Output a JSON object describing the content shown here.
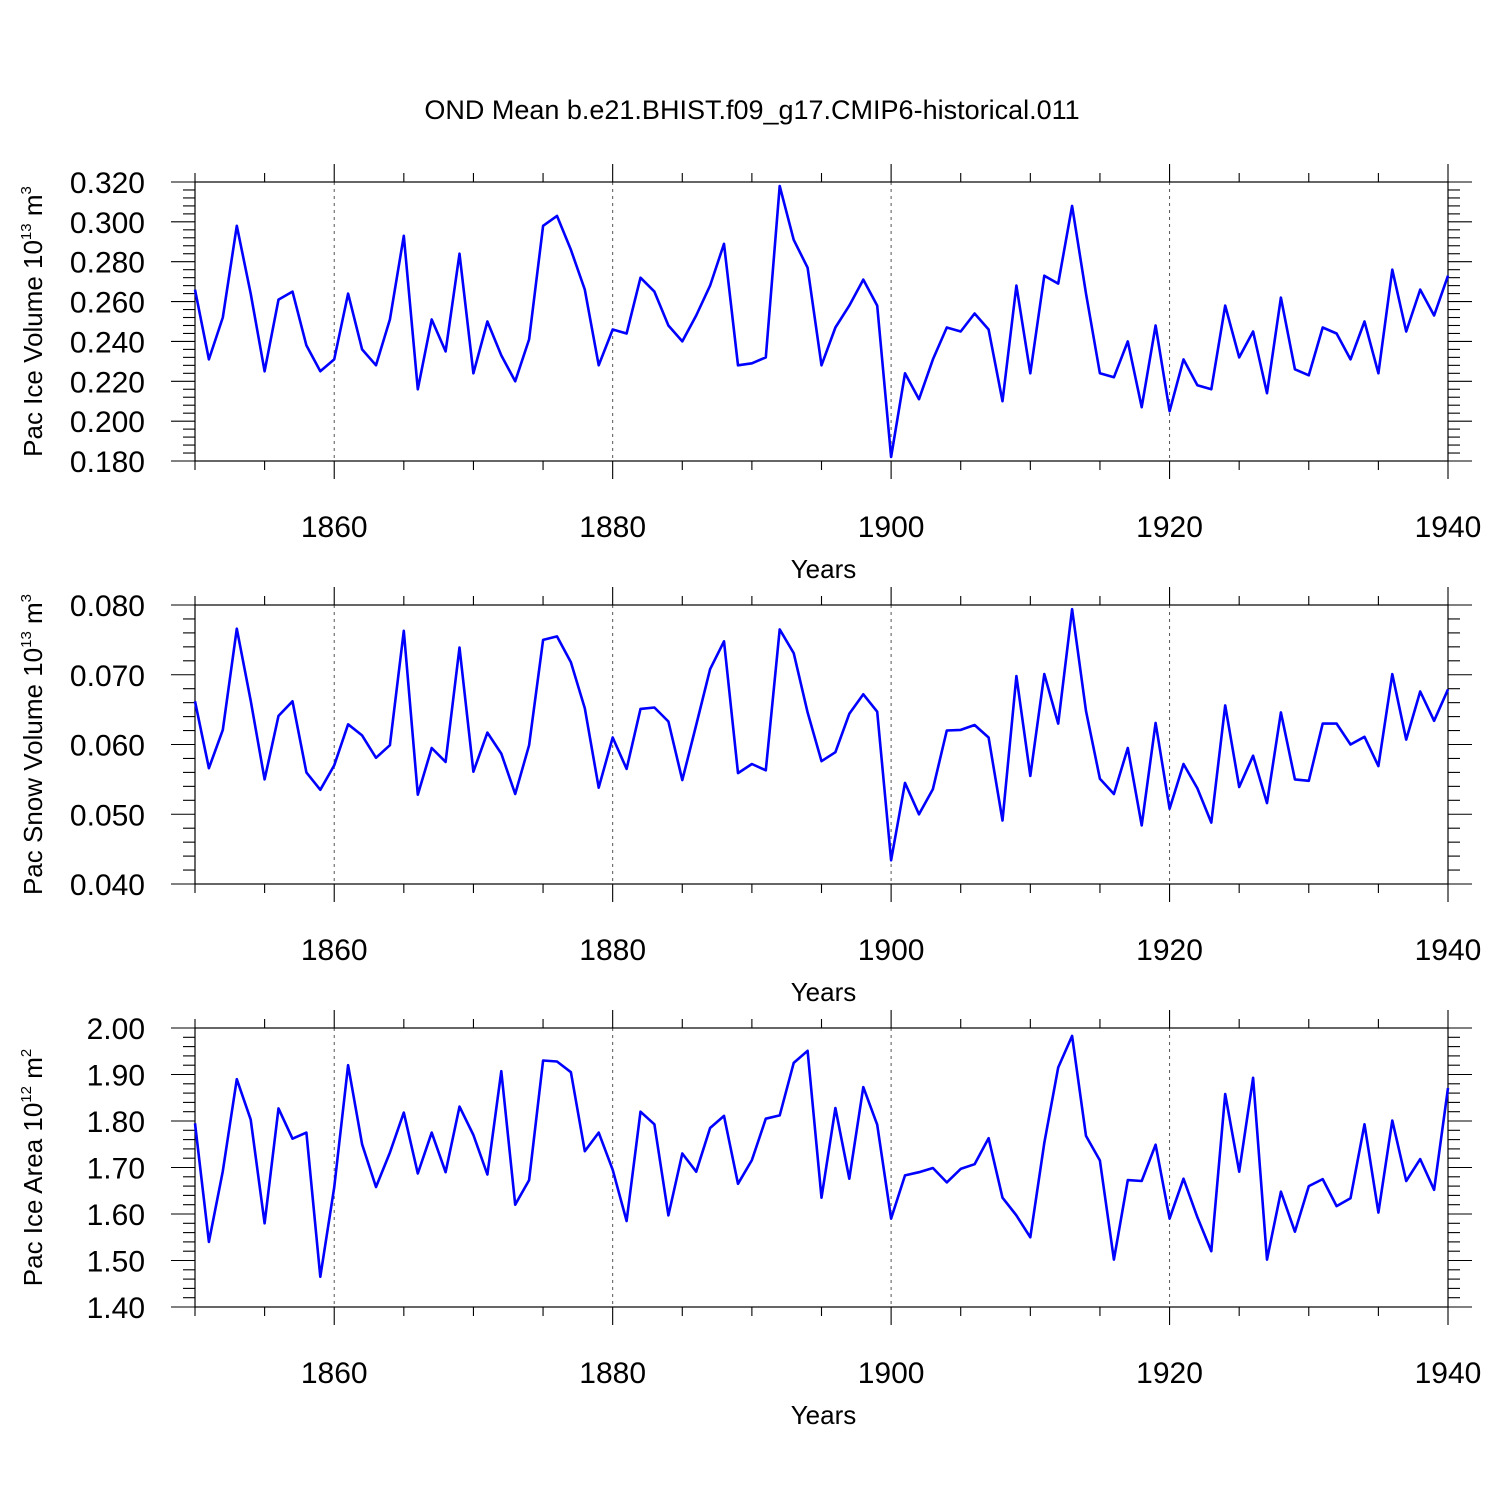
{
  "title": "OND Mean b.e21.BHIST.f09_g17.CMIP6-historical.011",
  "colors": {
    "line": "#0000ff",
    "axis": "#000000"
  },
  "chart_data": [
    {
      "type": "line",
      "ylabel_parts": {
        "base": "Pac Ice Volume 10",
        "exp": "13",
        "unit": " m",
        "unit_exp": "3"
      },
      "xlabel": "Years",
      "xlim": [
        1850,
        1940
      ],
      "ylim": [
        0.18,
        0.32
      ],
      "yticks": [
        "0.180",
        "0.200",
        "0.220",
        "0.240",
        "0.260",
        "0.280",
        "0.300",
        "0.320"
      ],
      "xticks": [
        "1860",
        "1880",
        "1900",
        "1920",
        "1940"
      ],
      "x_start": 1850,
      "values": [
        0.266,
        0.231,
        0.252,
        0.298,
        0.264,
        0.225,
        0.261,
        0.265,
        0.238,
        0.225,
        0.231,
        0.264,
        0.236,
        0.228,
        0.251,
        0.293,
        0.216,
        0.251,
        0.235,
        0.284,
        0.224,
        0.25,
        0.233,
        0.22,
        0.241,
        0.298,
        0.303,
        0.286,
        0.266,
        0.228,
        0.246,
        0.244,
        0.272,
        0.265,
        0.248,
        0.24,
        0.253,
        0.268,
        0.289,
        0.228,
        0.229,
        0.232,
        0.318,
        0.291,
        0.277,
        0.228,
        0.247,
        0.258,
        0.271,
        0.258,
        0.182,
        0.224,
        0.211,
        0.231,
        0.247,
        0.245,
        0.254,
        0.246,
        0.21,
        0.268,
        0.224,
        0.273,
        0.269,
        0.308,
        0.264,
        0.224,
        0.222,
        0.24,
        0.207,
        0.248,
        0.205,
        0.231,
        0.218,
        0.216,
        0.258,
        0.232,
        0.245,
        0.214,
        0.262,
        0.226,
        0.223,
        0.247,
        0.244,
        0.231,
        0.25,
        0.224,
        0.276,
        0.245,
        0.266,
        0.253,
        0.273
      ]
    },
    {
      "type": "line",
      "ylabel_parts": {
        "base": "Pac Snow Volume 10",
        "exp": "13",
        "unit": " m",
        "unit_exp": "3"
      },
      "xlabel": "Years",
      "xlim": [
        1850,
        1940
      ],
      "ylim": [
        0.04,
        0.08
      ],
      "yticks": [
        "0.040",
        "0.050",
        "0.060",
        "0.070",
        "0.080"
      ],
      "xticks": [
        "1860",
        "1880",
        "1900",
        "1920",
        "1940"
      ],
      "x_start": 1850,
      "values": [
        0.0662,
        0.0566,
        0.0621,
        0.0766,
        0.0663,
        0.055,
        0.0641,
        0.0662,
        0.056,
        0.0535,
        0.057,
        0.0629,
        0.0613,
        0.0581,
        0.0599,
        0.0763,
        0.0528,
        0.0595,
        0.0575,
        0.0739,
        0.0561,
        0.0617,
        0.0587,
        0.0529,
        0.0599,
        0.075,
        0.0755,
        0.0718,
        0.0652,
        0.0538,
        0.061,
        0.0565,
        0.0651,
        0.0653,
        0.0633,
        0.0549,
        0.0628,
        0.0708,
        0.0748,
        0.0559,
        0.0572,
        0.0563,
        0.0765,
        0.0731,
        0.0646,
        0.0576,
        0.0589,
        0.0644,
        0.0672,
        0.0647,
        0.0434,
        0.0545,
        0.05,
        0.0536,
        0.062,
        0.0621,
        0.0628,
        0.061,
        0.0491,
        0.0698,
        0.0555,
        0.0701,
        0.063,
        0.0794,
        0.0648,
        0.0551,
        0.0529,
        0.0595,
        0.0484,
        0.0631,
        0.0508,
        0.0572,
        0.0537,
        0.0488,
        0.0656,
        0.0539,
        0.0584,
        0.0516,
        0.0646,
        0.055,
        0.0548,
        0.063,
        0.063,
        0.06,
        0.0611,
        0.0569,
        0.0701,
        0.0607,
        0.0676,
        0.0634,
        0.0679
      ]
    },
    {
      "type": "line",
      "ylabel_parts": {
        "base": "Pac Ice Area 10",
        "exp": "12",
        "unit": " m",
        "unit_exp": "2"
      },
      "xlabel": "Years",
      "xlim": [
        1850,
        1940
      ],
      "ylim": [
        1.4,
        2.0
      ],
      "yticks": [
        "1.40",
        "1.50",
        "1.60",
        "1.70",
        "1.80",
        "1.90",
        "2.00"
      ],
      "xticks": [
        "1860",
        "1880",
        "1900",
        "1920",
        "1940"
      ],
      "x_start": 1850,
      "values": [
        1.795,
        1.54,
        1.692,
        1.89,
        1.803,
        1.58,
        1.827,
        1.762,
        1.775,
        1.465,
        1.657,
        1.92,
        1.75,
        1.658,
        1.732,
        1.818,
        1.687,
        1.775,
        1.69,
        1.831,
        1.77,
        1.685,
        1.907,
        1.62,
        1.673,
        1.93,
        1.928,
        1.905,
        1.735,
        1.775,
        1.695,
        1.585,
        1.82,
        1.793,
        1.597,
        1.73,
        1.691,
        1.785,
        1.811,
        1.665,
        1.716,
        1.805,
        1.812,
        1.925,
        1.951,
        1.635,
        1.828,
        1.676,
        1.873,
        1.792,
        1.59,
        1.683,
        1.69,
        1.699,
        1.668,
        1.697,
        1.707,
        1.763,
        1.635,
        1.597,
        1.55,
        1.753,
        1.915,
        1.983,
        1.768,
        1.715,
        1.502,
        1.673,
        1.671,
        1.749,
        1.59,
        1.676,
        1.593,
        1.52,
        1.858,
        1.691,
        1.893,
        1.502,
        1.648,
        1.562,
        1.66,
        1.675,
        1.617,
        1.634,
        1.793,
        1.603,
        1.801,
        1.671,
        1.718,
        1.652,
        1.871
      ]
    }
  ]
}
